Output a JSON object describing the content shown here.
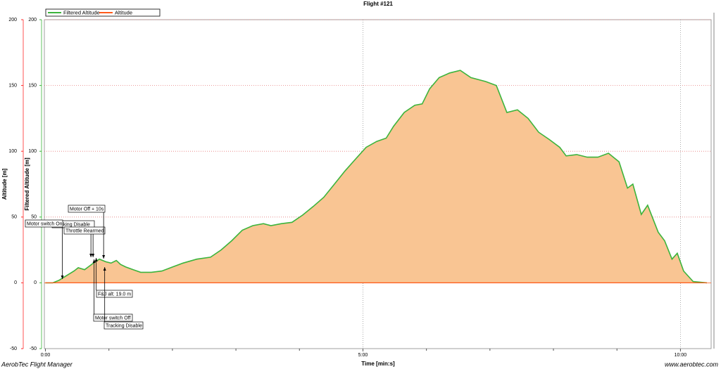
{
  "chart_data": {
    "type": "area",
    "title": "Flight #121",
    "x_label": "Time [min:s]",
    "y_label": "Altitude [m]",
    "y2_label": "Filtered Altitude [m]",
    "x": [
      0,
      7,
      13,
      20,
      27,
      31,
      37,
      42,
      47,
      51,
      57,
      62,
      67,
      71,
      76,
      83,
      90,
      100,
      110,
      120,
      130,
      143,
      156,
      166,
      176,
      186,
      196,
      206,
      213,
      223,
      233,
      243,
      253,
      263,
      273,
      283,
      293,
      303,
      313,
      322,
      329,
      339,
      349,
      356,
      363,
      372,
      382,
      392,
      402,
      416,
      426,
      436,
      446,
      456,
      466,
      476,
      486,
      492,
      502,
      512,
      522,
      532,
      542,
      550,
      555,
      563,
      569,
      579,
      585,
      592,
      597,
      603,
      612,
      625
    ],
    "series": [
      {
        "name": "Filtered Altitude",
        "color": "#3cb43c",
        "fill": "#f9c593",
        "axis": "y2",
        "values": [
          0,
          0,
          2,
          5.5,
          9,
          11.5,
          10,
          13,
          16,
          18,
          16,
          15,
          17,
          14,
          12,
          10,
          8,
          8,
          9,
          12,
          15,
          18,
          19.5,
          25,
          32,
          40,
          43.5,
          45,
          43.5,
          45,
          46,
          51.5,
          58,
          65,
          75,
          85,
          94,
          103,
          107.5,
          110,
          119,
          129.5,
          135,
          136,
          147.5,
          156,
          159.5,
          161.5,
          156,
          153,
          150,
          129.5,
          131.5,
          125,
          114.5,
          109,
          103,
          96.5,
          97.5,
          95.5,
          95.5,
          98.5,
          92,
          72,
          75,
          52,
          59,
          38.5,
          32,
          18,
          22.5,
          9,
          1,
          0
        ]
      },
      {
        "name": "Altitude",
        "color": "#ff5a1a",
        "values": [
          0,
          0,
          0,
          0,
          0,
          0,
          0,
          0,
          0,
          0,
          0,
          0,
          0,
          0,
          0,
          0,
          0,
          0,
          0,
          0,
          0,
          0,
          0,
          0,
          0,
          0,
          0,
          0,
          0,
          0,
          0,
          0,
          0,
          0,
          0,
          0,
          0,
          0,
          0,
          0,
          0,
          0,
          0,
          0,
          0,
          0,
          0,
          0,
          0,
          0,
          0,
          0,
          0,
          0,
          0,
          0,
          0,
          0,
          0,
          0,
          0,
          0,
          0,
          0,
          0,
          0,
          0,
          0,
          0,
          0,
          0,
          0,
          0,
          0
        ]
      }
    ],
    "xlim": [
      -1,
      629
    ],
    "xticks": [
      {
        "value": 0,
        "label": "0:00"
      },
      {
        "value": 300,
        "label": "5:00"
      },
      {
        "value": 600,
        "label": "10:00"
      }
    ],
    "x_minor_ticks": [
      60,
      120,
      180,
      240,
      360,
      420,
      480,
      540
    ],
    "ylim": [
      -50,
      200
    ],
    "yticks": [
      -50,
      0,
      50,
      100,
      150,
      200
    ],
    "y_color": "#ff2a2a",
    "y2lim": [
      -50,
      200
    ],
    "y2ticks": [
      -50,
      0,
      50,
      100,
      150,
      200
    ],
    "y2_color": "#3cb43c",
    "grid": true,
    "legend": "top-left",
    "annotations": [
      {
        "text": "Tracking Disable",
        "x": 43
      },
      {
        "text": "Motor switch On",
        "x": 16
      },
      {
        "text": "Throttle Rearmed",
        "x": 45
      },
      {
        "text": "Motor Off + 10s",
        "x": 55
      },
      {
        "text": "F&J alt: 19.0 m",
        "x": 48
      },
      {
        "text": "Motor switch Off",
        "x": 46
      },
      {
        "text": "Tracking Disable",
        "x": 56
      }
    ]
  },
  "footer": {
    "left": "AerobTec Flight Manager",
    "right": "www.aerobtec.com"
  }
}
